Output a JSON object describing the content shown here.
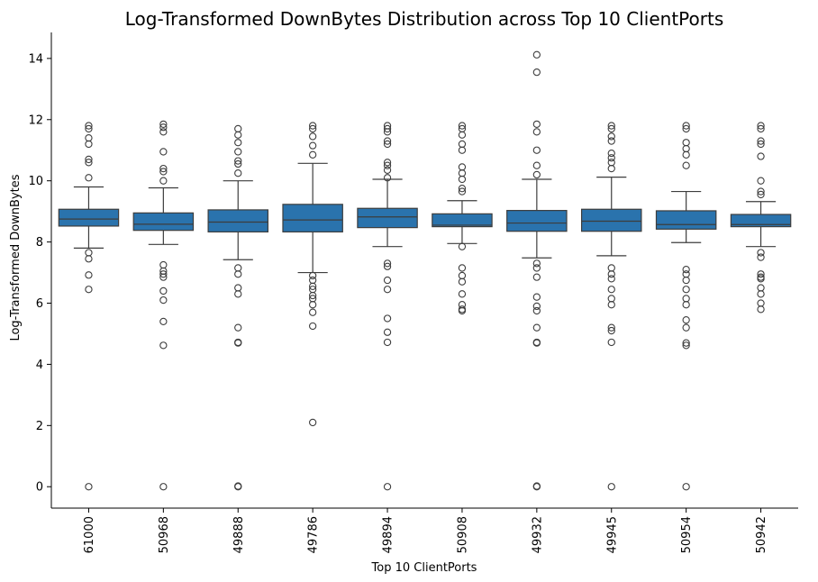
{
  "chart_data": {
    "type": "box",
    "title": "Log-Transformed DownBytes Distribution across Top 10 ClientPorts",
    "xlabel": "Top 10 ClientPorts",
    "ylabel": "Log-Transformed DownBytes",
    "ylim": [
      -0.7,
      14.85
    ],
    "yticks": [
      0,
      2,
      4,
      6,
      8,
      10,
      12,
      14
    ],
    "grid": false,
    "box_color": "#2a73ad",
    "edge_color": "#3d3d3d",
    "categories": [
      "61000",
      "50968",
      "49888",
      "49786",
      "49894",
      "50908",
      "49932",
      "49945",
      "50954",
      "50942"
    ],
    "boxes": [
      {
        "q1": 8.52,
        "median": 8.75,
        "q3": 9.07,
        "whisker_low": 7.8,
        "whisker_high": 9.8,
        "outliers": [
          11.8,
          11.7,
          11.4,
          11.2,
          10.7,
          10.6,
          10.1,
          7.65,
          7.45,
          6.92,
          6.45,
          0.0
        ]
      },
      {
        "q1": 8.38,
        "median": 8.58,
        "q3": 8.95,
        "whisker_low": 7.92,
        "whisker_high": 9.77,
        "outliers": [
          11.85,
          11.75,
          11.6,
          10.95,
          10.4,
          10.3,
          10.0,
          7.25,
          7.05,
          6.95,
          6.85,
          6.4,
          6.1,
          5.4,
          4.62,
          0.0
        ]
      },
      {
        "q1": 8.33,
        "median": 8.65,
        "q3": 9.05,
        "whisker_low": 7.42,
        "whisker_high": 10.0,
        "outliers": [
          11.7,
          11.5,
          11.25,
          10.95,
          10.65,
          10.55,
          10.25,
          7.15,
          6.95,
          6.5,
          6.3,
          5.2,
          4.72,
          4.7,
          0.02,
          0.0
        ]
      },
      {
        "q1": 8.33,
        "median": 8.72,
        "q3": 9.23,
        "whisker_low": 7.0,
        "whisker_high": 10.57,
        "outliers": [
          11.8,
          11.7,
          11.45,
          11.15,
          10.85,
          6.9,
          6.75,
          6.55,
          6.45,
          6.25,
          6.15,
          5.95,
          5.7,
          5.25,
          2.1
        ]
      },
      {
        "q1": 8.47,
        "median": 8.82,
        "q3": 9.1,
        "whisker_low": 7.85,
        "whisker_high": 10.05,
        "outliers": [
          11.8,
          11.7,
          11.6,
          11.3,
          11.2,
          10.6,
          10.5,
          10.35,
          10.1,
          7.3,
          7.2,
          6.75,
          6.45,
          5.5,
          5.05,
          4.72,
          0.0
        ]
      },
      {
        "q1": 8.5,
        "median": 8.55,
        "q3": 8.92,
        "whisker_low": 7.95,
        "whisker_high": 9.35,
        "outliers": [
          11.8,
          11.7,
          11.5,
          11.2,
          11.0,
          10.45,
          10.25,
          10.05,
          9.75,
          9.65,
          7.85,
          7.15,
          6.9,
          6.7,
          6.3,
          5.95,
          5.8,
          5.75
        ]
      },
      {
        "q1": 8.35,
        "median": 8.62,
        "q3": 9.03,
        "whisker_low": 7.48,
        "whisker_high": 10.05,
        "outliers": [
          14.12,
          13.55,
          11.85,
          11.6,
          11.0,
          10.5,
          10.2,
          7.3,
          7.15,
          6.85,
          6.2,
          5.9,
          5.75,
          5.2,
          4.72,
          4.7,
          0.02,
          0.0
        ]
      },
      {
        "q1": 8.35,
        "median": 8.68,
        "q3": 9.07,
        "whisker_low": 7.55,
        "whisker_high": 10.12,
        "outliers": [
          11.8,
          11.7,
          11.45,
          11.3,
          10.9,
          10.75,
          10.6,
          10.4,
          7.15,
          6.95,
          6.8,
          6.45,
          6.15,
          5.95,
          5.2,
          5.1,
          4.72,
          0.0
        ]
      },
      {
        "q1": 8.42,
        "median": 8.57,
        "q3": 9.02,
        "whisker_low": 7.98,
        "whisker_high": 9.65,
        "outliers": [
          11.8,
          11.7,
          11.25,
          11.05,
          10.85,
          10.5,
          7.1,
          6.95,
          6.75,
          6.45,
          6.15,
          5.95,
          5.45,
          5.2,
          4.7,
          4.62,
          0.0
        ]
      },
      {
        "q1": 8.5,
        "median": 8.57,
        "q3": 8.9,
        "whisker_low": 7.85,
        "whisker_high": 9.32,
        "outliers": [
          11.8,
          11.7,
          11.3,
          11.2,
          10.8,
          10.0,
          9.65,
          9.55,
          7.65,
          7.5,
          6.95,
          6.85,
          6.8,
          6.5,
          6.3,
          6.0,
          5.8
        ]
      }
    ]
  }
}
